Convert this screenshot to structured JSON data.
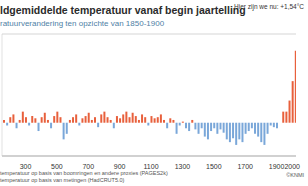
{
  "chart_data": {
    "type": "bar",
    "title": "ldgemiddelde temperatuur vanaf begin jaartelling",
    "subtitle": "ratuurverandering ten opzichte van 1850-1900",
    "annotation": "Hier zijn we nu: +1,54°C",
    "credit": "©KNMI",
    "xlim": [
      150,
      2024
    ],
    "xticks": [
      300,
      500,
      700,
      900,
      1100,
      1300,
      1500,
      1700,
      1900,
      2000
    ],
    "ylim": [
      -0.6,
      1.6
    ],
    "yticks": [
      0
    ],
    "grid": true,
    "tick_labels": "x",
    "series": [
      {
        "name": "temperatuur op basis van boomringen en andere proxies (PAGES2k)",
        "x": [
          160,
          180,
          200,
          220,
          240,
          260,
          280,
          300,
          320,
          340,
          360,
          380,
          400,
          420,
          440,
          460,
          480,
          500,
          520,
          540,
          560,
          580,
          600,
          620,
          640,
          660,
          680,
          700,
          720,
          740,
          760,
          780,
          800,
          820,
          840,
          860,
          880,
          900,
          920,
          940,
          960,
          980,
          1000,
          1020,
          1040,
          1060,
          1080,
          1100,
          1120,
          1140,
          1160,
          1180,
          1200,
          1220,
          1240,
          1260,
          1280,
          1300,
          1320,
          1340,
          1360,
          1380,
          1400,
          1420,
          1440,
          1460,
          1480,
          1500,
          1520,
          1540,
          1560,
          1580,
          1600,
          1620,
          1640,
          1660,
          1680,
          1700,
          1720,
          1740,
          1760,
          1780,
          1800,
          1820,
          1840
        ],
        "values": [
          0.05,
          -0.05,
          0.1,
          0.15,
          -0.1,
          0.05,
          0.2,
          0.1,
          -0.05,
          0.12,
          0.08,
          -0.15,
          0.1,
          0.18,
          0.05,
          -0.1,
          0.12,
          0.2,
          0.1,
          -0.3,
          -0.2,
          0.05,
          0.1,
          0.15,
          -0.05,
          0.08,
          0.12,
          0.18,
          0.05,
          0.1,
          -0.08,
          0.15,
          0.2,
          0.1,
          0.05,
          -0.1,
          0.12,
          0.08,
          0.15,
          0.2,
          0.1,
          0.18,
          0.12,
          0.05,
          0.15,
          0.1,
          -0.05,
          0.12,
          0.08,
          0.1,
          0.15,
          0.05,
          -0.1,
          0.08,
          0.05,
          -0.2,
          -0.05,
          0.02,
          -0.1,
          -0.15,
          0.05,
          -0.12,
          -0.2,
          -0.1,
          -0.25,
          -0.3,
          -0.15,
          -0.1,
          -0.2,
          -0.12,
          -0.18,
          -0.3,
          -0.35,
          -0.28,
          -0.4,
          -0.3,
          -0.35,
          -0.2,
          -0.15,
          -0.1,
          -0.2,
          -0.25,
          -0.35,
          -0.4,
          -0.2
        ],
        "colors": [
          "#e8603c",
          "#7aa7d9",
          "#e8603c",
          "#e8603c",
          "#7aa7d9",
          "#e8603c",
          "#e8603c",
          "#e8603c",
          "#7aa7d9",
          "#e8603c",
          "#e8603c",
          "#7aa7d9",
          "#e8603c",
          "#e8603c",
          "#e8603c",
          "#7aa7d9",
          "#e8603c",
          "#e8603c",
          "#e8603c",
          "#7aa7d9",
          "#7aa7d9",
          "#e8603c",
          "#e8603c",
          "#e8603c",
          "#7aa7d9",
          "#e8603c",
          "#e8603c",
          "#e8603c",
          "#e8603c",
          "#e8603c",
          "#7aa7d9",
          "#e8603c",
          "#e8603c",
          "#e8603c",
          "#e8603c",
          "#7aa7d9",
          "#e8603c",
          "#e8603c",
          "#e8603c",
          "#e8603c",
          "#e8603c",
          "#e8603c",
          "#e8603c",
          "#e8603c",
          "#e8603c",
          "#e8603c",
          "#7aa7d9",
          "#e8603c",
          "#e8603c",
          "#e8603c",
          "#e8603c",
          "#e8603c",
          "#7aa7d9",
          "#e8603c",
          "#e8603c",
          "#7aa7d9",
          "#7aa7d9",
          "#e8603c",
          "#7aa7d9",
          "#7aa7d9",
          "#e8603c",
          "#7aa7d9",
          "#7aa7d9",
          "#7aa7d9",
          "#7aa7d9",
          "#7aa7d9",
          "#7aa7d9",
          "#7aa7d9",
          "#7aa7d9",
          "#7aa7d9",
          "#7aa7d9",
          "#7aa7d9",
          "#7aa7d9",
          "#7aa7d9",
          "#7aa7d9",
          "#7aa7d9",
          "#7aa7d9",
          "#7aa7d9",
          "#7aa7d9",
          "#7aa7d9",
          "#7aa7d9",
          "#7aa7d9",
          "#7aa7d9",
          "#7aa7d9",
          "#7aa7d9"
        ]
      },
      {
        "name": "temperatuur op basis van metingen (HadCRUT5.0)",
        "x": [
          1860,
          1880,
          1900,
          1920,
          1940,
          1960,
          1980,
          2000,
          2020
        ],
        "values": [
          -0.05,
          -0.08,
          -0.1,
          0.0,
          0.2,
          0.2,
          0.4,
          0.75,
          1.3
        ],
        "colors": [
          "#7aa7d9",
          "#7aa7d9",
          "#7aa7d9",
          "#e8603c",
          "#e8603c",
          "#e8603c",
          "#e8603c",
          "#e8603c",
          "#e8603c"
        ]
      }
    ]
  }
}
